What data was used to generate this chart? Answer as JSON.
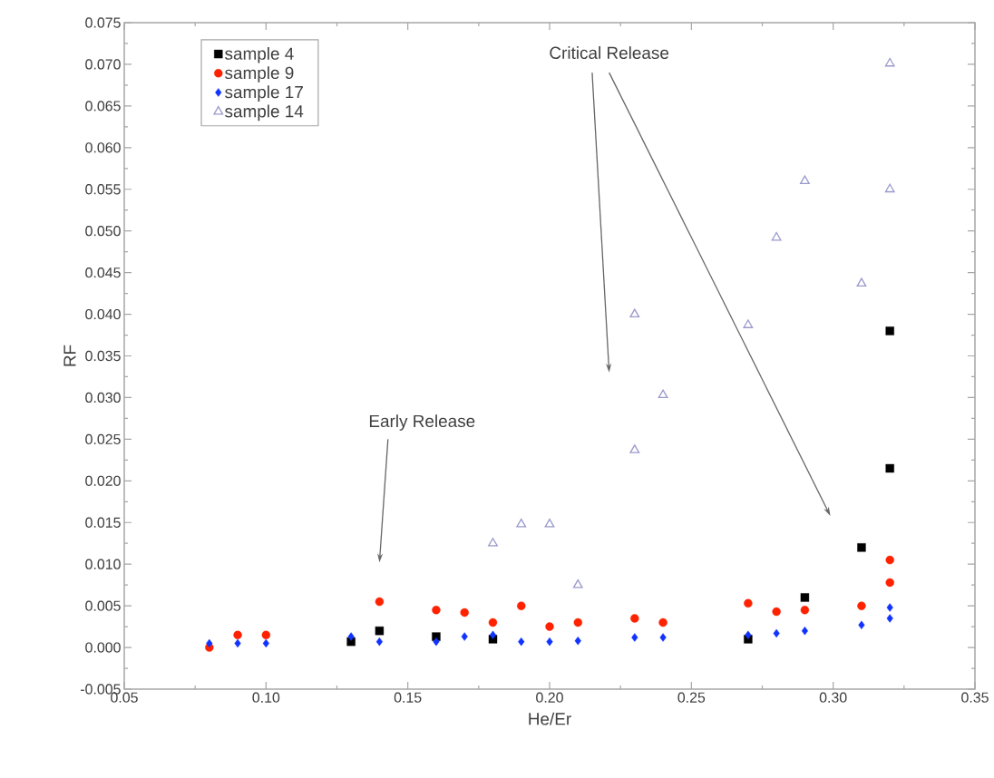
{
  "chart_data": {
    "type": "scatter",
    "xlabel": "He/Er",
    "ylabel": "RF",
    "xlim": [
      0.05,
      0.35
    ],
    "xticks": [
      {
        "value": 0.05,
        "label": "0.05"
      },
      {
        "value": 0.1,
        "label": "0.10"
      },
      {
        "value": 0.15,
        "label": "0.15"
      },
      {
        "value": 0.2,
        "label": "0.20"
      },
      {
        "value": 0.25,
        "label": "0.25"
      },
      {
        "value": 0.3,
        "label": "0.30"
      },
      {
        "value": 0.35,
        "label": "0.35"
      }
    ],
    "ylim": [
      -0.005,
      0.075
    ],
    "yticks": [
      {
        "value": -0.005,
        "label": "-0.005"
      },
      {
        "value": 0,
        "label": "0.000"
      },
      {
        "value": 0.005,
        "label": "0.005"
      },
      {
        "value": 0.01,
        "label": "0.010"
      },
      {
        "value": 0.015,
        "label": "0.015"
      },
      {
        "value": 0.02,
        "label": "0.020"
      },
      {
        "value": 0.025,
        "label": "0.025"
      },
      {
        "value": 0.03,
        "label": "0.030"
      },
      {
        "value": 0.035,
        "label": "0.035"
      },
      {
        "value": 0.04,
        "label": "0.040"
      },
      {
        "value": 0.045,
        "label": "0.045"
      },
      {
        "value": 0.05,
        "label": "0.050"
      },
      {
        "value": 0.055,
        "label": "0.055"
      },
      {
        "value": 0.06,
        "label": "0.060"
      },
      {
        "value": 0.065,
        "label": "0.065"
      },
      {
        "value": 0.07,
        "label": "0.070"
      },
      {
        "value": 0.075,
        "label": "0.075"
      }
    ],
    "grid": false,
    "legend": "top left",
    "annotations": [
      "Early Release",
      "Critical Release"
    ],
    "series": [
      {
        "name": "sample 4",
        "color": "#000000",
        "marker": "square",
        "x": [
          0.13,
          0.14,
          0.16,
          0.18,
          0.27,
          0.29,
          0.31,
          0.32,
          0.32
        ],
        "values": [
          0.0007,
          0.002,
          0.0013,
          0.001,
          0.001,
          0.006,
          0.012,
          0.0215,
          0.038
        ]
      },
      {
        "name": "sample 9",
        "color": "#ff2200",
        "marker": "circle",
        "x": [
          0.08,
          0.09,
          0.1,
          0.14,
          0.16,
          0.17,
          0.18,
          0.19,
          0.2,
          0.21,
          0.23,
          0.24,
          0.27,
          0.28,
          0.29,
          0.31,
          0.32,
          0.32
        ],
        "values": [
          0.0,
          0.0015,
          0.0015,
          0.0055,
          0.0045,
          0.0042,
          0.003,
          0.005,
          0.0025,
          0.003,
          0.0035,
          0.003,
          0.0053,
          0.0043,
          0.0045,
          0.005,
          0.0105,
          0.0078
        ]
      },
      {
        "name": "sample 17",
        "color": "#1133ff",
        "marker": "diamond",
        "x": [
          0.08,
          0.09,
          0.1,
          0.13,
          0.14,
          0.16,
          0.17,
          0.18,
          0.19,
          0.2,
          0.21,
          0.23,
          0.24,
          0.27,
          0.28,
          0.29,
          0.31,
          0.32,
          0.32
        ],
        "values": [
          0.0005,
          0.0005,
          0.0005,
          0.0013,
          0.0007,
          0.0007,
          0.0013,
          0.0015,
          0.0007,
          0.0007,
          0.0008,
          0.0012,
          0.0012,
          0.0015,
          0.0017,
          0.002,
          0.0027,
          0.0048,
          0.0035
        ]
      },
      {
        "name": "sample 14",
        "color": "#9999cc",
        "marker": "triangle",
        "x": [
          0.18,
          0.19,
          0.2,
          0.21,
          0.23,
          0.23,
          0.24,
          0.27,
          0.28,
          0.29,
          0.31,
          0.32,
          0.32
        ],
        "values": [
          0.0125,
          0.0148,
          0.0148,
          0.0075,
          0.0237,
          0.04,
          0.0303,
          0.0387,
          0.0492,
          0.056,
          0.0437,
          0.055,
          0.0701
        ]
      }
    ]
  }
}
